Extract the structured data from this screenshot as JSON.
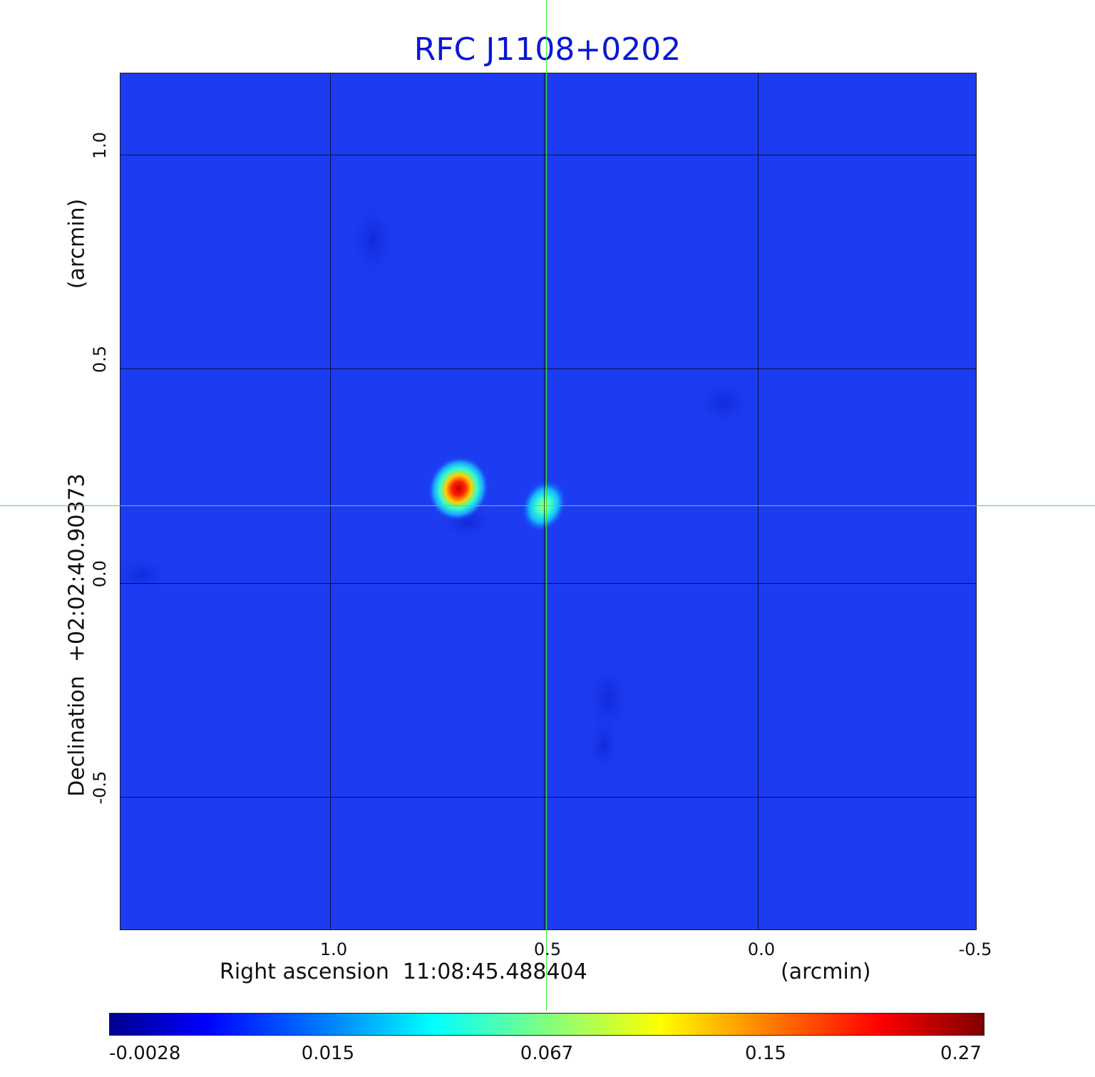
{
  "chart_data": {
    "type": "heatmap",
    "title": "RFC J1108+0202",
    "xlabel": "Right ascension  11:08:45.488404",
    "xunit": "(arcmin)",
    "ylabel": "Declination  +02:02:40.90373",
    "yunit": "(arcmin)",
    "xlim": [
      1.49,
      -0.51
    ],
    "ylim": [
      -0.81,
      1.19
    ],
    "x_ticks": [
      "1.0",
      "0.5",
      "0.0",
      "-0.5"
    ],
    "y_ticks": [
      "1.0",
      "0.5",
      "0.0",
      "-0.5"
    ],
    "x_grid": [
      1.0,
      0.5,
      0.0
    ],
    "y_grid": [
      1.0,
      0.5,
      0.0,
      -0.5
    ],
    "grid": true,
    "crosshair": {
      "x": 0.5,
      "y": 0.18
    },
    "colormap": "jet",
    "colorbar_ticks": [
      "-0.0028",
      "0.015",
      "0.067",
      "0.15",
      "0.27"
    ],
    "sources": [
      {
        "x": 0.7,
        "y": 0.22,
        "peak": 0.27
      },
      {
        "x": 0.5,
        "y": 0.18,
        "peak": 0.075
      }
    ],
    "background_level": 0.0
  }
}
